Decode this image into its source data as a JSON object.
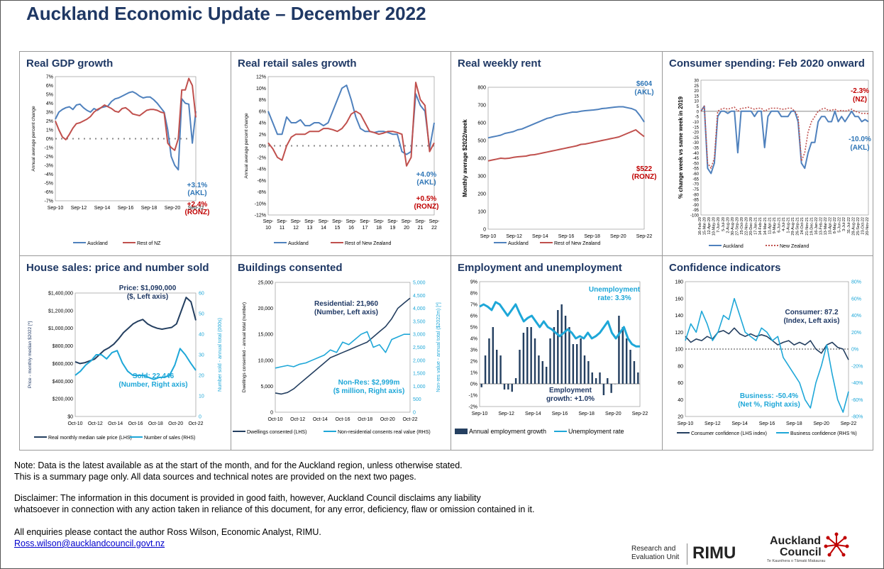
{
  "page": {
    "title": "Auckland Economic Update – December 2022",
    "note_line1": "Note: Data is the latest available as at the start of the month, and for the Auckland region, unless otherwise stated.",
    "note_line2": "This is a summary page only. All data sources and technical notes are provided on the next two pages.",
    "disclaimer_line1": "Disclaimer: The information in this document is provided in good faith, however, Auckland Council disclaims any liability",
    "disclaimer_line2": "whatsoever in connection with any action taken in reliance of this document, for any error, deficiency, flaw or omission contained in it.",
    "contact_line": "All enquiries please contact the author Ross Wilson, Economic Analyst, RIMU.",
    "contact_email": "Ross.wilson@aucklandcouncil.govt.nz",
    "rimu_line1": "Research and",
    "rimu_line2": "Evaluation Unit",
    "rimu_logo": "RIMU",
    "council_line1": "Auckland",
    "council_line2": "Council",
    "council_tagline": "Te Kaunihera o Tāmaki Makaurau"
  },
  "colors": {
    "auckland_blue": "#4f81bd",
    "nz_red": "#c0504d",
    "navy": "#1f3864",
    "cyan": "#1ea7d8",
    "dark_navy": "#243f60",
    "annot_blue": "#2e75b6",
    "annot_red": "#c00000"
  },
  "chart_data": [
    {
      "id": "gdp",
      "title": "Real GDP growth",
      "type": "line",
      "ylabel": "Annual average percent change",
      "y_ticks": [
        "7%",
        "6%",
        "5%",
        "4%",
        "3%",
        "2%",
        "1%",
        "0%",
        "-1%",
        "-2%",
        "-3%",
        "-4%",
        "-5%",
        "-6%",
        "-7%"
      ],
      "x_ticks": [
        "Sep-10",
        "Sep-12",
        "Sep-14",
        "Sep-16",
        "Sep-18",
        "Sep-20",
        "Sep-22"
      ],
      "ylim": [
        -7,
        7
      ],
      "series": [
        {
          "name": "Auckland",
          "values": [
            2.2,
            3.0,
            3.3,
            3.5,
            3.6,
            3.3,
            3.8,
            3.9,
            3.5,
            3.2,
            3.0,
            3.4,
            3.2,
            3.5,
            3.6,
            3.7,
            4.2,
            4.5,
            4.6,
            4.8,
            5.0,
            5.2,
            5.3,
            5.1,
            4.8,
            4.6,
            4.7,
            4.7,
            4.4,
            4.0,
            3.5,
            3.0,
            1.0,
            -2.0,
            -3.0,
            -3.5,
            4.5,
            4.0,
            3.9,
            -0.5,
            3.1
          ]
        },
        {
          "name": "Rest of NZ",
          "values": [
            2.0,
            1.0,
            0.2,
            -0.1,
            0.5,
            1.2,
            1.7,
            1.8,
            2.0,
            2.2,
            2.5,
            3.0,
            3.3,
            3.5,
            3.8,
            3.6,
            3.4,
            3.1,
            3.0,
            3.4,
            3.5,
            3.2,
            2.8,
            2.7,
            2.6,
            2.9,
            3.2,
            3.3,
            3.3,
            3.2,
            3.0,
            2.9,
            -0.5,
            -1.0,
            -1.3,
            0,
            5.5,
            5.5,
            6.8,
            6.0,
            2.4
          ]
        }
      ],
      "annotations": [
        "+3.1%",
        "(AKL)",
        "+2.4%",
        "(RONZ)"
      ]
    },
    {
      "id": "retail",
      "title": "Real retail sales growth",
      "type": "line",
      "ylabel": "Annual average percent change",
      "y_ticks": [
        "12%",
        "10%",
        "8%",
        "6%",
        "4%",
        "2%",
        "0%",
        "-2%",
        "-4%",
        "-6%",
        "-8%",
        "-10%",
        "-12%"
      ],
      "x_ticks_top": [
        "Sep-",
        "Sep-",
        "Sep-",
        "Sep-",
        "Sep-",
        "Sep-",
        "Sep-",
        "Sep-",
        "Sep-",
        "Sep-",
        "Sep-",
        "Sep-",
        "Sep-"
      ],
      "x_ticks_bottom": [
        "10",
        "11",
        "12",
        "13",
        "14",
        "15",
        "16",
        "17",
        "18",
        "19",
        "20",
        "21",
        "22"
      ],
      "ylim": [
        -12,
        12
      ],
      "series": [
        {
          "name": "Auckland",
          "values": [
            6,
            4,
            2,
            2,
            5,
            4,
            4,
            4.5,
            3.5,
            3.5,
            4,
            4,
            3.5,
            4,
            6,
            8,
            10,
            10.5,
            8,
            5,
            3,
            2.5,
            2.5,
            2.3,
            2.5,
            2.5,
            2.3,
            2,
            2,
            -1,
            -1.5,
            -1,
            9,
            7,
            6,
            -0.5,
            4
          ]
        },
        {
          "name": "Rest of New Zealand",
          "values": [
            0.5,
            -0.5,
            -2,
            -2.5,
            0,
            1.5,
            2,
            2,
            2,
            2.5,
            2.5,
            2.5,
            3,
            3,
            2.8,
            2.5,
            3,
            4,
            5.5,
            6,
            5.5,
            4,
            2.5,
            2.3,
            2,
            2.2,
            2.5,
            2.5,
            2.3,
            2,
            -3.5,
            -2,
            11,
            8,
            7,
            -1,
            0.5
          ]
        }
      ],
      "annotations": [
        "+4.0%",
        "(AKL)",
        "+0.5%",
        "(RONZ)"
      ]
    },
    {
      "id": "rent",
      "title": "Real weekly rent",
      "type": "line",
      "ylabel": "Monthly average $2022/week",
      "y_ticks": [
        "800",
        "700",
        "600",
        "500",
        "400",
        "300",
        "200",
        "100",
        "0"
      ],
      "x_ticks": [
        "Sep-10",
        "Sep-12",
        "Sep-14",
        "Sep-16",
        "Sep-18",
        "Sep-20",
        "Sep-22"
      ],
      "ylim": [
        0,
        800
      ],
      "series": [
        {
          "name": "Auckland",
          "values": [
            515,
            520,
            525,
            530,
            540,
            545,
            550,
            560,
            565,
            575,
            585,
            595,
            605,
            615,
            625,
            630,
            640,
            645,
            650,
            655,
            660,
            660,
            665,
            668,
            670,
            672,
            675,
            680,
            682,
            685,
            688,
            690,
            690,
            685,
            680,
            670,
            640,
            604
          ]
        },
        {
          "name": "Rest of New Zealand",
          "values": [
            385,
            390,
            395,
            400,
            398,
            400,
            405,
            408,
            410,
            412,
            418,
            420,
            425,
            430,
            435,
            440,
            445,
            450,
            455,
            460,
            465,
            470,
            478,
            480,
            485,
            490,
            495,
            500,
            505,
            510,
            515,
            520,
            530,
            540,
            550,
            560,
            540,
            522
          ]
        }
      ],
      "annotations": [
        "$604",
        "(AKL)",
        "$522",
        "(RONZ)"
      ]
    },
    {
      "id": "spending",
      "title": "Consumer spending: Feb 2020 onward",
      "type": "line",
      "ylabel": "% change week vs same week in 2019",
      "y_ticks": [
        "30",
        "25",
        "20",
        "15",
        "10",
        "5",
        "0",
        "-5",
        "-10",
        "-15",
        "-20",
        "-25",
        "-30",
        "-35",
        "-40",
        "-45",
        "-50",
        "-55",
        "-60",
        "-65",
        "-70",
        "-75",
        "-80",
        "-85",
        "-90",
        "-95",
        "-100"
      ],
      "x_ticks": [
        "16-Feb-20",
        "15-Mar-20",
        "12-Apr-20",
        "10-May-20",
        "7-Jun-20",
        "5-Jul-20",
        "2-Aug-20",
        "30-Aug-20",
        "27-Sep-20",
        "25-Oct-20",
        "22-Nov-20",
        "20-Dec-20",
        "17-Jan-21",
        "14-Feb-21",
        "14-Mar-21",
        "11-Apr-21",
        "9-May-21",
        "6-Jun-21",
        "4-Jul-21",
        "1-Aug-21",
        "29-Aug-21",
        "26-Sep-21",
        "24-Oct-21",
        "21-Nov-21",
        "19-Dec-21",
        "16-Jan-22",
        "13-Feb-22",
        "13-Mar-22",
        "10-Apr-22",
        "8-May-22",
        "5-Jun-22",
        "3-Jul-22",
        "31-Jul-22",
        "28-Aug-22",
        "25-Sep-22",
        "23-Oct-22",
        "20-Nov-22"
      ],
      "ylim": [
        -100,
        30
      ],
      "series": [
        {
          "name": "Auckland",
          "values": [
            0,
            5,
            -55,
            -60,
            -50,
            -5,
            0,
            0,
            -2,
            0,
            0,
            -40,
            0,
            0,
            0,
            0,
            -5,
            0,
            0,
            -35,
            -5,
            0,
            0,
            0,
            -5,
            -5,
            -5,
            0,
            0,
            -10,
            -50,
            -55,
            -40,
            -30,
            -30,
            -10,
            -5,
            -5,
            -10,
            -10,
            0,
            -10,
            -5,
            -10,
            -5,
            0,
            -5,
            -5,
            -10,
            -8,
            -10
          ]
        },
        {
          "name": "New Zealand",
          "values": [
            0,
            5,
            -50,
            -55,
            -45,
            0,
            2,
            3,
            2,
            3,
            4,
            0,
            3,
            3,
            4,
            3,
            2,
            3,
            3,
            0,
            2,
            3,
            3,
            3,
            2,
            2,
            3,
            3,
            0,
            -5,
            -48,
            -40,
            -20,
            -10,
            -5,
            0,
            2,
            3,
            1,
            1,
            2,
            0,
            1,
            0,
            1,
            2,
            0,
            -1,
            -2,
            -2,
            -2.3
          ]
        }
      ],
      "annotations": [
        "-2.3%",
        "(NZ)",
        "-10.0%",
        "(AKL)"
      ]
    },
    {
      "id": "house",
      "title": "House sales: price and number sold",
      "type": "line",
      "ylabel": "Price - monthly median $2022 [*]",
      "ylabel_right": "Number sold - annual total (000s)",
      "y_ticks": [
        "$1,400,000",
        "$1,200,000",
        "$1,000,000",
        "$800,000",
        "$600,000",
        "$400,000",
        "$200,000",
        "$0"
      ],
      "y_ticks_right": [
        "60",
        "50",
        "40",
        "30",
        "20",
        "10",
        "0"
      ],
      "x_ticks": [
        "Oct-10",
        "Oct-12",
        "Oct-14",
        "Oct-16",
        "Oct-18",
        "Oct-20",
        "Oct-22"
      ],
      "ylim": [
        0,
        1400000
      ],
      "ylim_right": [
        0,
        60
      ],
      "series": [
        {
          "name": "Real monthly median sale price (LHS)",
          "values": [
            620000,
            600000,
            610000,
            630000,
            650000,
            700000,
            750000,
            780000,
            820000,
            880000,
            950000,
            1000000,
            1050000,
            1080000,
            1100000,
            1050000,
            1020000,
            1000000,
            990000,
            1000000,
            1010000,
            1050000,
            1200000,
            1350000,
            1300000,
            1090000
          ]
        },
        {
          "name": "Number of sales (RHS)",
          "values": [
            20,
            22,
            25,
            27,
            30,
            30,
            28,
            31,
            32,
            26,
            22,
            20,
            20,
            20,
            19,
            18,
            19,
            19,
            20,
            25,
            33,
            30,
            26,
            22.4
          ]
        }
      ],
      "annotations": [
        "Price: $1,090,000",
        "($, Left axis)",
        "Sold: 22,446",
        "(Number, Right axis)"
      ]
    },
    {
      "id": "buildings",
      "title": "Buildings consented",
      "type": "line",
      "ylabel": "Dwellings consented - annual total (number)",
      "ylabel_right": "Non-res value - annual total ($2022m) [*]",
      "y_ticks": [
        "25,000",
        "20,000",
        "15,000",
        "10,000",
        "5,000",
        "0"
      ],
      "y_ticks_right": [
        "5,000",
        "4,500",
        "4,000",
        "3,500",
        "3,000",
        "2,500",
        "2,000",
        "1,500",
        "1,000",
        "500",
        "0"
      ],
      "x_ticks": [
        "Oct-10",
        "Oct-12",
        "Oct-14",
        "Oct-16",
        "Oct-18",
        "Oct-20",
        "Oct-22"
      ],
      "ylim": [
        0,
        25000
      ],
      "ylim_right": [
        0,
        5000
      ],
      "series": [
        {
          "name": "Dwellings consented (LHS)",
          "values": [
            3700,
            3500,
            3800,
            4500,
            5500,
            6500,
            7500,
            8500,
            9500,
            10500,
            11000,
            11500,
            12000,
            12500,
            13000,
            13500,
            14500,
            15500,
            16500,
            18000,
            20000,
            21000,
            21960
          ]
        },
        {
          "name": "Non-residential consents real value (RHS)",
          "values": [
            1700,
            1750,
            1800,
            1750,
            1850,
            1900,
            2000,
            2100,
            2200,
            2400,
            2300,
            2700,
            2600,
            2800,
            3000,
            3100,
            2500,
            2600,
            2300,
            2800,
            2900,
            3000,
            2999
          ]
        }
      ],
      "annotations": [
        "Residential: 21,960",
        "(Number, Left axis)",
        "Non-Res: $2,999m",
        "($ million, Right axis)"
      ]
    },
    {
      "id": "employment",
      "title": "Employment and unemployment",
      "type": "bar",
      "y_ticks": [
        "9%",
        "8%",
        "7%",
        "6%",
        "5%",
        "4%",
        "3%",
        "2%",
        "1%",
        "0%",
        "-1%",
        "-2%"
      ],
      "x_ticks": [
        "Sep-10",
        "Sep-12",
        "Sep-14",
        "Sep-16",
        "Sep-18",
        "Sep-20",
        "Sep-22"
      ],
      "ylim": [
        -2,
        9
      ],
      "series": [
        {
          "name": "Annual employment growth",
          "values": [
            -0.3,
            2.5,
            4,
            5,
            3,
            2.5,
            -0.5,
            -0.5,
            -0.7,
            0.5,
            3,
            4.5,
            5,
            5,
            4,
            2.5,
            2,
            1.5,
            4,
            5,
            6.5,
            7,
            6,
            5,
            3.5,
            3.5,
            4,
            2.5,
            2,
            1,
            0.5,
            1,
            -1,
            0.5,
            -0.8,
            0,
            6,
            5,
            4,
            3,
            2,
            1
          ]
        },
        {
          "name": "Unemployment rate",
          "values": [
            6.8,
            7.0,
            6.8,
            6.5,
            7.2,
            7.0,
            6.5,
            6.0,
            6.5,
            7.0,
            6.2,
            5.5,
            5.8,
            6.0,
            5.5,
            5.0,
            5.5,
            5.0,
            4.8,
            4.5,
            4.2,
            4.5,
            4.8,
            4.5,
            4.0,
            4.2,
            4.0,
            4.5,
            4.0,
            4.2,
            4.5,
            5.0,
            5.5,
            4.5,
            4.0,
            4.5,
            5.0,
            4.0,
            3.5,
            3.3,
            3.3
          ]
        }
      ],
      "annotations": [
        "Unemployment",
        "rate:      3.3%",
        "Employment",
        "growth: +1.0%"
      ]
    },
    {
      "id": "confidence",
      "title": "Confidence indicators",
      "type": "line",
      "y_ticks": [
        "180",
        "160",
        "140",
        "120",
        "100",
        "80",
        "60",
        "40",
        "20"
      ],
      "y_ticks_right": [
        "80%",
        "60%",
        "40%",
        "20%",
        "0%",
        "-20%",
        "-40%",
        "-60%",
        "-80%"
      ],
      "x_ticks": [
        "Sep-10",
        "Sep-12",
        "Sep-14",
        "Sep-16",
        "Sep-18",
        "Sep-20",
        "Sep-22"
      ],
      "ylim": [
        20,
        180
      ],
      "ylim_right": [
        -80,
        80
      ],
      "series": [
        {
          "name": "Consumer confidence (LHS index)",
          "values": [
            115,
            108,
            112,
            110,
            115,
            112,
            120,
            122,
            118,
            125,
            118,
            115,
            118,
            115,
            117,
            115,
            110,
            105,
            108,
            110,
            105,
            108,
            105,
            110,
            100,
            95,
            105,
            108,
            102,
            100,
            87.2
          ]
        },
        {
          "name": "Business confidence (RHS %)",
          "values": [
            10,
            30,
            20,
            45,
            30,
            10,
            20,
            40,
            35,
            60,
            40,
            20,
            15,
            10,
            25,
            20,
            10,
            15,
            -10,
            -20,
            -30,
            -40,
            -60,
            -70,
            -40,
            -20,
            5,
            -30,
            -60,
            -75,
            -50.4
          ]
        }
      ],
      "annotations": [
        "Consumer: 87.2",
        "(Index, Left axis)",
        "Business: -50.4%",
        "(Net %, Right axis)"
      ]
    }
  ]
}
